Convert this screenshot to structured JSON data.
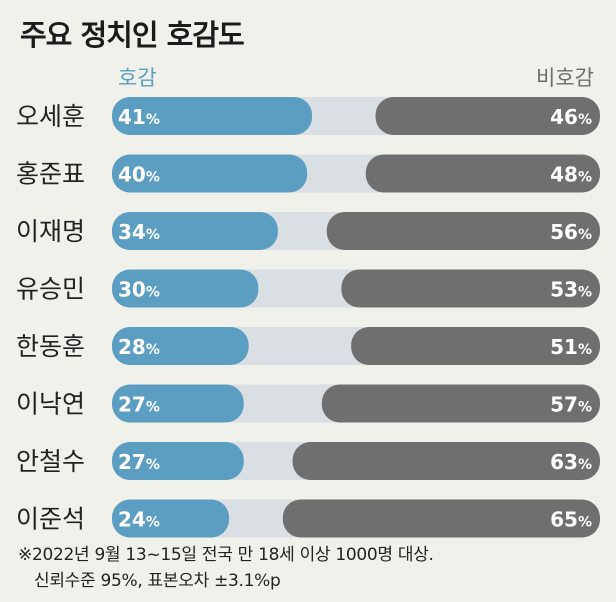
{
  "title": "주요 정치인 호감도",
  "legend": {
    "favorable": "호감",
    "unfavorable": "비호감"
  },
  "colors": {
    "favorable": "#5b9ec2",
    "unfavorable": "#6f6f6f",
    "track": "#d9dfe2",
    "background": "#f1f1ec"
  },
  "chart_data": {
    "type": "bar",
    "title": "주요 정치인 호감도",
    "categories": [
      "오세훈",
      "홍준표",
      "이재명",
      "유승민",
      "한동훈",
      "이낙연",
      "안철수",
      "이준석"
    ],
    "series": [
      {
        "name": "호감",
        "values": [
          41,
          40,
          34,
          30,
          28,
          27,
          27,
          24
        ]
      },
      {
        "name": "비호감",
        "values": [
          46,
          48,
          56,
          53,
          51,
          57,
          63,
          65
        ]
      }
    ],
    "unit": "%",
    "ylim": [
      0,
      100
    ],
    "legend_position": "top"
  },
  "footnote": {
    "line1": "※2022년 9월 13~15일 전국 만 18세 이상 1000명 대상.",
    "line2": "신뢰수준 95%, 표본오차 ±3.1%p"
  }
}
